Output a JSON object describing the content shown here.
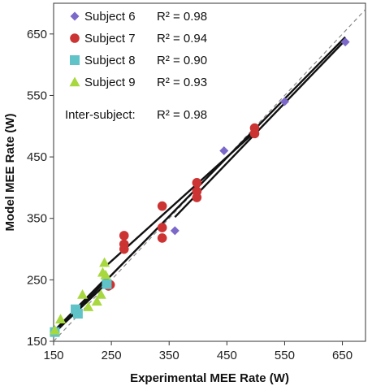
{
  "chart_data": {
    "type": "scatter",
    "xlabel": "Experimental MEE Rate (W)",
    "ylabel": "Model MEE Rate (W)",
    "xlim": [
      150,
      690
    ],
    "ylim": [
      150,
      700
    ],
    "xticks": [
      150,
      250,
      350,
      450,
      550,
      650
    ],
    "yticks": [
      150,
      250,
      350,
      450,
      550,
      650
    ],
    "xtick_labels": [
      "150",
      "250",
      "350",
      "450",
      "550",
      "650"
    ],
    "ytick_labels": [
      "150",
      "250",
      "350",
      "450",
      "550",
      "650"
    ],
    "grid": false,
    "legend_position": "top-left",
    "identity_line": true,
    "series": [
      {
        "name": "Subject 6",
        "r2_label": "R² = 0.98",
        "marker": "diamond",
        "color": "#7b68c8",
        "points": [
          [
            360,
            330
          ],
          [
            445,
            460
          ],
          [
            550,
            540
          ],
          [
            655,
            637
          ]
        ],
        "fit": [
          [
            360,
            352
          ],
          [
            655,
            640
          ]
        ]
      },
      {
        "name": "Subject 7",
        "r2_label": "R² = 0.94",
        "marker": "circle",
        "color": "#cc3333",
        "points": [
          [
            245,
            240
          ],
          [
            248,
            242
          ],
          [
            272,
            322
          ],
          [
            272,
            308
          ],
          [
            272,
            300
          ],
          [
            338,
            370
          ],
          [
            338,
            335
          ],
          [
            338,
            318
          ],
          [
            398,
            408
          ],
          [
            398,
            394
          ],
          [
            398,
            384
          ],
          [
            498,
            497
          ],
          [
            498,
            488
          ]
        ],
        "fit": [
          [
            240,
            272
          ],
          [
            500,
            492
          ]
        ]
      },
      {
        "name": "Subject 8",
        "r2_label": "R² = 0.90",
        "marker": "square",
        "color": "#5fc3c8",
        "points": [
          [
            152,
            165
          ],
          [
            188,
            202
          ],
          [
            192,
            195
          ],
          [
            242,
            243
          ]
        ],
        "fit": [
          [
            150,
            163
          ],
          [
            245,
            247
          ]
        ]
      },
      {
        "name": "Subject 9",
        "r2_label": "R² = 0.93",
        "marker": "triangle",
        "color": "#a8d840",
        "points": [
          [
            152,
            168
          ],
          [
            162,
            186
          ],
          [
            200,
            226
          ],
          [
            210,
            206
          ],
          [
            225,
            215
          ],
          [
            232,
            226
          ],
          [
            235,
            262
          ],
          [
            238,
            278
          ],
          [
            240,
            258
          ]
        ],
        "fit": [
          [
            150,
            166
          ],
          [
            242,
            254
          ]
        ]
      }
    ],
    "inter_subject": {
      "label": "Inter-subject:",
      "r2_label": "R² = 0.98",
      "fit": [
        [
          150,
          162
        ],
        [
          655,
          645
        ]
      ]
    }
  }
}
